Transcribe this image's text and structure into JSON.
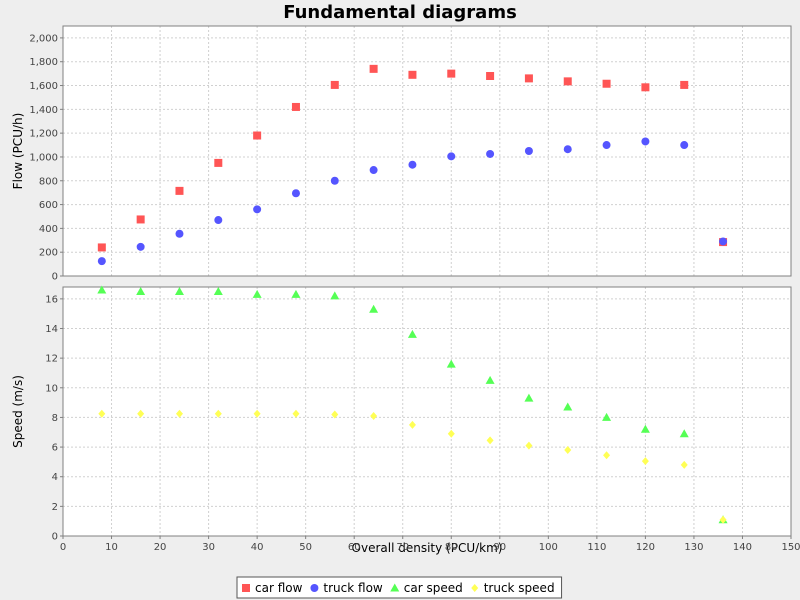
{
  "chart_data": {
    "type": "scatter",
    "title": "Fundamental diagrams",
    "xlabel": "Overall density (PCU/km)",
    "xlim": [
      0,
      150
    ],
    "x_ticks": [
      0,
      10,
      20,
      30,
      40,
      50,
      60,
      70,
      80,
      90,
      100,
      110,
      120,
      130,
      140,
      150
    ],
    "grid": true,
    "legend_position": "bottom",
    "panels": [
      {
        "ylabel": "Flow (PCU/h)",
        "ylim": [
          0,
          2100
        ],
        "y_ticks": [
          0,
          200,
          400,
          600,
          800,
          1000,
          1200,
          1400,
          1600,
          1800,
          2000
        ],
        "y_tick_labels": [
          "0",
          "200",
          "400",
          "600",
          "800",
          "1,000",
          "1,200",
          "1,400",
          "1,600",
          "1,800",
          "2,000"
        ],
        "series": [
          {
            "name": "car flow",
            "marker": "square",
            "color": "#ff5555",
            "x": [
              8,
              16,
              24,
              32,
              40,
              48,
              56,
              64,
              72,
              80,
              88,
              96,
              104,
              112,
              120,
              128,
              136
            ],
            "y": [
              240,
              475,
              715,
              950,
              1180,
              1420,
              1605,
              1740,
              1690,
              1700,
              1680,
              1660,
              1635,
              1615,
              1585,
              1605,
              285
            ]
          },
          {
            "name": "truck flow",
            "marker": "circle",
            "color": "#5555ff",
            "x": [
              8,
              16,
              24,
              32,
              40,
              48,
              56,
              64,
              72,
              80,
              88,
              96,
              104,
              112,
              120,
              128,
              136
            ],
            "y": [
              125,
              245,
              355,
              470,
              560,
              695,
              800,
              890,
              935,
              1005,
              1025,
              1050,
              1065,
              1100,
              1130,
              1100,
              290
            ]
          }
        ]
      },
      {
        "ylabel": "Speed (m/s)",
        "ylim": [
          0,
          16.8
        ],
        "y_ticks": [
          0,
          2,
          4,
          6,
          8,
          10,
          12,
          14,
          16
        ],
        "y_tick_labels": [
          "0",
          "2",
          "4",
          "6",
          "8",
          "10",
          "12",
          "14",
          "16"
        ],
        "series": [
          {
            "name": "car speed",
            "marker": "triangle",
            "color": "#55ff55",
            "x": [
              8,
              16,
              24,
              32,
              40,
              48,
              56,
              64,
              72,
              80,
              88,
              96,
              104,
              112,
              120,
              128,
              136
            ],
            "y": [
              16.6,
              16.5,
              16.5,
              16.5,
              16.3,
              16.3,
              16.2,
              15.3,
              13.6,
              11.6,
              10.5,
              9.3,
              8.7,
              8.0,
              7.2,
              6.9,
              1.1
            ]
          },
          {
            "name": "truck speed",
            "marker": "diamond",
            "color": "#ffff55",
            "x": [
              8,
              16,
              24,
              32,
              40,
              48,
              56,
              64,
              72,
              80,
              88,
              96,
              104,
              112,
              120,
              128,
              136
            ],
            "y": [
              8.25,
              8.25,
              8.25,
              8.25,
              8.25,
              8.25,
              8.2,
              8.1,
              7.5,
              6.9,
              6.45,
              6.1,
              5.8,
              5.45,
              5.05,
              4.8,
              1.1
            ]
          }
        ]
      }
    ]
  }
}
